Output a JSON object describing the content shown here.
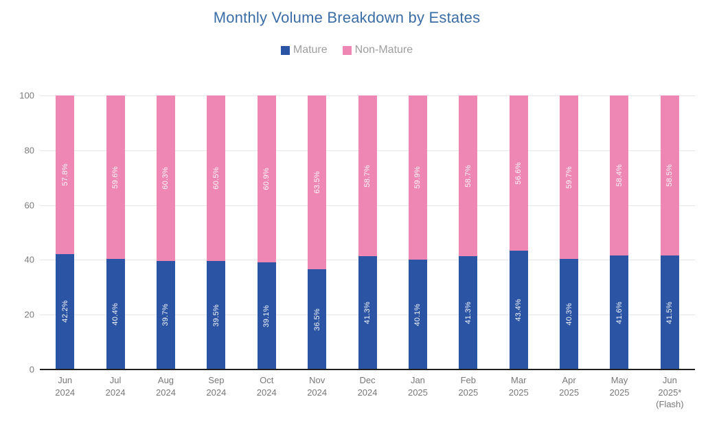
{
  "chart": {
    "title": "Monthly Volume Breakdown by Estates",
    "colors": {
      "mature": "#2b55a4",
      "non_mature": "#ee87b4",
      "title": "#3a6da6",
      "legend_text": "#9e9e9e",
      "axis_text": "#7a7a7a",
      "gridline": "#e6e6e6",
      "baseline": "#1f1f1f"
    }
  },
  "chart_data": {
    "type": "bar",
    "stacked": true,
    "title": "Monthly Volume Breakdown by Estates",
    "xlabel": "",
    "ylabel": "",
    "ylim": [
      0,
      100
    ],
    "yticks": [
      0,
      20,
      40,
      60,
      80,
      100
    ],
    "grid": true,
    "legend_position": "top",
    "bar_labels": "rotated percent labels inside segments",
    "categories": [
      "Jun\n2024",
      "Jul\n2024",
      "Aug\n2024",
      "Sep\n2024",
      "Oct\n2024",
      "Nov\n2024",
      "Dec\n2024",
      "Jan\n2025",
      "Feb\n2025",
      "Mar\n2025",
      "Apr\n2025",
      "May\n2025",
      "Jun\n2025*\n(Flash)"
    ],
    "series": [
      {
        "name": "Mature",
        "color": "#2b55a4",
        "values": [
          42.2,
          40.4,
          39.7,
          39.5,
          39.1,
          36.5,
          41.3,
          40.1,
          41.3,
          43.4,
          40.3,
          41.6,
          41.5
        ],
        "labels": [
          "42.2%",
          "40.4%",
          "39.7%",
          "39.5%",
          "39.1%",
          "36.5%",
          "41.3%",
          "40.1%",
          "41.3%",
          "43.4%",
          "40.3%",
          "41.6%",
          "41.5%"
        ]
      },
      {
        "name": "Non-Mature",
        "color": "#ee87b4",
        "values": [
          57.8,
          59.6,
          60.3,
          60.5,
          60.9,
          63.5,
          58.7,
          59.9,
          58.7,
          56.6,
          59.7,
          58.4,
          58.5
        ],
        "labels": [
          "57.8%",
          "59.6%",
          "60.3%",
          "60.5%",
          "60.9%",
          "63.5%",
          "58.7%",
          "59.9%",
          "58.7%",
          "56.6%",
          "59.7%",
          "58.4%",
          "58.5%"
        ]
      }
    ]
  }
}
